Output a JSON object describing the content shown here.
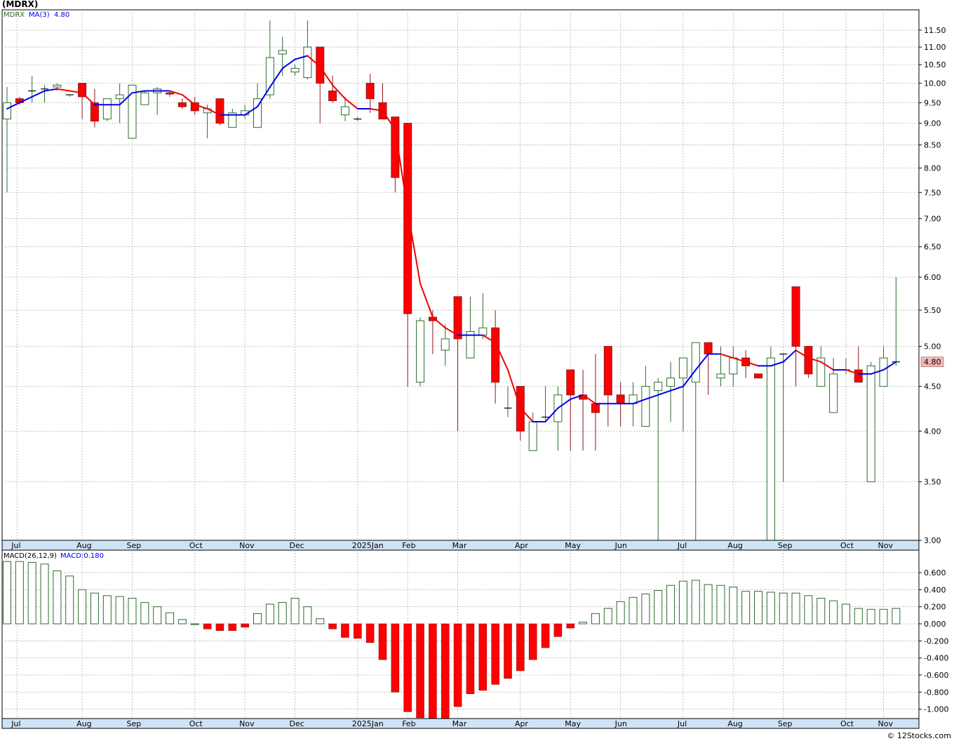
{
  "title": "(MDRX)",
  "watermark": "© 12Stocks.com",
  "colors": {
    "up_candle": "#2e6b2e",
    "down_candle": "#ff0000",
    "ma_rising": "#0000ee",
    "ma_falling": "#ee0000",
    "grid": "#b4b4b4",
    "axis_bg": "#cfe3f7",
    "price_tag": "#f3b7b7"
  },
  "price_panel": {
    "legend": {
      "symbol": "MDRX",
      "ma_label": "MA(3)",
      "ma_value": "4.80"
    },
    "last_price_tag": "4.80",
    "scale": "log",
    "y_ticks": [
      "11.50",
      "11.00",
      "10.50",
      "10.00",
      "9.50",
      "9.00",
      "8.50",
      "8.00",
      "7.50",
      "7.00",
      "6.50",
      "6.00",
      "5.50",
      "5.00",
      "4.50",
      "4.00",
      "3.50",
      "3.00"
    ]
  },
  "macd_panel": {
    "legend": {
      "label": "MACD(26,12,9)",
      "value_label": "MACD:0.180"
    },
    "y_ticks": [
      "0.600",
      "0.400",
      "0.200",
      "0.000",
      "-0.200",
      "-0.400",
      "-0.600",
      "-0.800",
      "-1.000"
    ]
  },
  "months": [
    {
      "label": "Jul",
      "week": 0.8
    },
    {
      "label": "Aug",
      "week": 6.0
    },
    {
      "label": "Sep",
      "week": 10.0
    },
    {
      "label": "Oct",
      "week": 15.0
    },
    {
      "label": "Nov",
      "week": 19.0
    },
    {
      "label": "Dec",
      "week": 23.0
    },
    {
      "label": "2025Jan",
      "week": 28.0
    },
    {
      "label": "Feb",
      "week": 32.0
    },
    {
      "label": "Mar",
      "week": 36.0
    },
    {
      "label": "Apr",
      "week": 41.0
    },
    {
      "label": "May",
      "week": 45.0
    },
    {
      "label": "Jun",
      "week": 49.0
    },
    {
      "label": "Jul",
      "week": 54.0
    },
    {
      "label": "Aug",
      "week": 58.0
    },
    {
      "label": "Sep",
      "week": 62.0
    },
    {
      "label": "Oct",
      "week": 67.0
    },
    {
      "label": "Nov",
      "week": 70.0
    }
  ],
  "chart_data": [
    {
      "type": "candlestick",
      "series": [
        {
          "name": "MDRX",
          "ohlc": [
            [
              9.1,
              9.9,
              7.5,
              9.5
            ],
            [
              9.6,
              9.65,
              9.45,
              9.5
            ],
            [
              9.8,
              10.2,
              9.5,
              9.8
            ],
            [
              9.85,
              9.95,
              9.5,
              9.85
            ],
            [
              9.9,
              10.0,
              9.8,
              9.95
            ],
            [
              9.7,
              9.7,
              9.65,
              9.7
            ],
            [
              10.0,
              10.0,
              9.1,
              9.65
            ],
            [
              9.5,
              9.85,
              8.9,
              9.05
            ],
            [
              9.1,
              9.6,
              9.05,
              9.6
            ],
            [
              9.6,
              10.0,
              9.0,
              9.7
            ],
            [
              8.65,
              9.95,
              8.65,
              9.95
            ],
            [
              9.45,
              9.8,
              9.45,
              9.75
            ],
            [
              9.75,
              9.9,
              9.2,
              9.85
            ],
            [
              9.75,
              9.8,
              9.65,
              9.72
            ],
            [
              9.5,
              9.6,
              9.35,
              9.4
            ],
            [
              9.5,
              9.65,
              9.2,
              9.3
            ],
            [
              9.25,
              9.45,
              8.65,
              9.35
            ],
            [
              9.6,
              9.6,
              8.95,
              9.0
            ],
            [
              8.9,
              9.35,
              8.9,
              9.25
            ],
            [
              9.2,
              9.45,
              9.1,
              9.3
            ],
            [
              8.9,
              10.0,
              8.9,
              9.6
            ],
            [
              9.7,
              11.8,
              9.6,
              10.7
            ],
            [
              10.8,
              11.3,
              10.2,
              10.9
            ],
            [
              10.3,
              10.5,
              10.2,
              10.4
            ],
            [
              10.15,
              11.8,
              10.1,
              11.0
            ],
            [
              11.0,
              11.0,
              9.0,
              10.0
            ],
            [
              9.8,
              10.2,
              9.5,
              9.55
            ],
            [
              9.2,
              9.65,
              9.05,
              9.4
            ],
            [
              9.1,
              9.15,
              9.05,
              9.1
            ],
            [
              10.0,
              10.25,
              9.25,
              9.6
            ],
            [
              9.5,
              10.0,
              9.1,
              9.1
            ],
            [
              9.15,
              9.15,
              7.5,
              7.8
            ],
            [
              9.0,
              9.0,
              4.5,
              5.45
            ],
            [
              4.55,
              5.4,
              4.5,
              5.35
            ],
            [
              5.4,
              5.5,
              4.9,
              5.35
            ],
            [
              4.95,
              5.3,
              4.75,
              5.1
            ],
            [
              5.7,
              5.7,
              4.0,
              5.1
            ],
            [
              4.85,
              5.7,
              4.85,
              5.2
            ],
            [
              5.15,
              5.75,
              5.1,
              5.25
            ],
            [
              5.25,
              5.5,
              4.3,
              4.55
            ],
            [
              4.25,
              4.5,
              4.15,
              4.25
            ],
            [
              4.5,
              4.5,
              3.9,
              4.0
            ],
            [
              3.8,
              4.2,
              3.8,
              4.1
            ],
            [
              4.15,
              4.5,
              4.1,
              4.15
            ],
            [
              4.1,
              4.5,
              3.8,
              4.4
            ],
            [
              4.7,
              4.7,
              3.8,
              4.4
            ],
            [
              4.4,
              4.7,
              3.8,
              4.35
            ],
            [
              4.3,
              4.9,
              3.8,
              4.2
            ],
            [
              5.0,
              5.0,
              4.05,
              4.4
            ],
            [
              4.4,
              4.55,
              4.05,
              4.3
            ],
            [
              4.3,
              4.55,
              4.05,
              4.4
            ],
            [
              4.05,
              4.75,
              4.05,
              4.5
            ],
            [
              4.45,
              4.6,
              2.95,
              4.55
            ],
            [
              4.5,
              4.8,
              4.1,
              4.6
            ],
            [
              4.6,
              4.85,
              4.0,
              4.85
            ],
            [
              4.55,
              5.05,
              2.95,
              5.05
            ],
            [
              5.05,
              5.05,
              4.4,
              4.9
            ],
            [
              4.6,
              5.0,
              4.5,
              4.65
            ],
            [
              4.65,
              5.0,
              4.5,
              4.85
            ],
            [
              4.85,
              4.95,
              4.6,
              4.75
            ],
            [
              4.65,
              4.65,
              4.6,
              4.6
            ],
            [
              2.95,
              5.0,
              2.95,
              4.85
            ],
            [
              4.9,
              4.9,
              3.5,
              4.9
            ],
            [
              5.85,
              5.85,
              4.5,
              5.0
            ],
            [
              5.0,
              5.0,
              4.6,
              4.65
            ],
            [
              4.5,
              5.0,
              4.5,
              4.85
            ],
            [
              4.2,
              4.85,
              4.2,
              4.65
            ],
            [
              4.7,
              4.85,
              4.65,
              4.7
            ],
            [
              4.7,
              5.0,
              4.55,
              4.55
            ],
            [
              3.5,
              4.8,
              3.5,
              4.75
            ],
            [
              4.5,
              5.0,
              4.5,
              4.85
            ],
            [
              4.8,
              6.0,
              4.75,
              4.8
            ]
          ]
        },
        {
          "name": "MA(3)",
          "values": [
            9.35,
            9.5,
            9.65,
            9.8,
            9.85,
            9.8,
            9.75,
            9.45,
            9.45,
            9.45,
            9.75,
            9.8,
            9.8,
            9.8,
            9.7,
            9.45,
            9.35,
            9.2,
            9.2,
            9.2,
            9.4,
            9.9,
            10.4,
            10.65,
            10.75,
            10.45,
            9.95,
            9.6,
            9.35,
            9.35,
            9.3,
            8.85,
            7.15,
            5.9,
            5.4,
            5.25,
            5.15,
            5.15,
            5.15,
            5.05,
            4.7,
            4.25,
            4.1,
            4.1,
            4.25,
            4.35,
            4.4,
            4.3,
            4.3,
            4.3,
            4.3,
            4.35,
            4.4,
            4.45,
            4.5,
            4.7,
            4.9,
            4.9,
            4.85,
            4.8,
            4.75,
            4.75,
            4.8,
            4.95,
            4.85,
            4.8,
            4.7,
            4.7,
            4.65,
            4.65,
            4.7,
            4.8
          ]
        }
      ]
    },
    {
      "type": "bar",
      "series": [
        {
          "name": "MACD(26,12,9)",
          "values": [
            0.73,
            0.73,
            0.72,
            0.7,
            0.62,
            0.56,
            0.4,
            0.36,
            0.33,
            0.32,
            0.3,
            0.25,
            0.2,
            0.13,
            0.05,
            0.0,
            -0.06,
            -0.08,
            -0.08,
            -0.04,
            0.12,
            0.23,
            0.25,
            0.3,
            0.2,
            0.06,
            -0.06,
            -0.16,
            -0.17,
            -0.22,
            -0.42,
            -0.8,
            -1.03,
            -1.1,
            -1.13,
            -1.12,
            -0.97,
            -0.82,
            -0.78,
            -0.71,
            -0.64,
            -0.55,
            -0.42,
            -0.28,
            -0.15,
            -0.05,
            0.02,
            0.12,
            0.18,
            0.26,
            0.31,
            0.35,
            0.39,
            0.45,
            0.5,
            0.51,
            0.46,
            0.45,
            0.43,
            0.38,
            0.38,
            0.37,
            0.36,
            0.36,
            0.33,
            0.3,
            0.27,
            0.23,
            0.18,
            0.17,
            0.17,
            0.18
          ]
        }
      ]
    }
  ]
}
